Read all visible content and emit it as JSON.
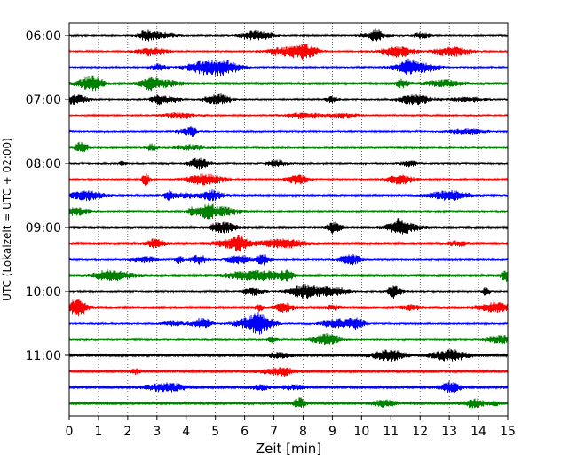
{
  "chart_data": {
    "type": "line",
    "title": "",
    "xlabel": "Zeit  [min]",
    "ylabel": "UTC (Lokalzeit = UTC + 02:00)",
    "xlim": [
      0,
      15
    ],
    "x_ticks": [
      "0",
      "1",
      "2",
      "3",
      "4",
      "5",
      "6",
      "7",
      "8",
      "9",
      "10",
      "11",
      "12",
      "13",
      "14",
      "15"
    ],
    "grid": "vertical-dotted",
    "trace_interval_min": 15,
    "trace_colors": [
      "#000000",
      "#ff0000",
      "#0000ff",
      "#008000"
    ],
    "y_ticks": [
      {
        "label": "06:00",
        "trace_index": 0
      },
      {
        "label": "07:00",
        "trace_index": 4
      },
      {
        "label": "08:00",
        "trace_index": 8
      },
      {
        "label": "09:00",
        "trace_index": 12
      },
      {
        "label": "10:00",
        "trace_index": 16
      },
      {
        "label": "11:00",
        "trace_index": 20
      }
    ],
    "series": [
      {
        "start": "06:00",
        "color": "#000000"
      },
      {
        "start": "06:15",
        "color": "#ff0000"
      },
      {
        "start": "06:30",
        "color": "#0000ff"
      },
      {
        "start": "06:45",
        "color": "#008000"
      },
      {
        "start": "07:00",
        "color": "#000000"
      },
      {
        "start": "07:15",
        "color": "#ff0000"
      },
      {
        "start": "07:30",
        "color": "#0000ff"
      },
      {
        "start": "07:45",
        "color": "#008000"
      },
      {
        "start": "08:00",
        "color": "#000000"
      },
      {
        "start": "08:15",
        "color": "#ff0000"
      },
      {
        "start": "08:30",
        "color": "#0000ff"
      },
      {
        "start": "08:45",
        "color": "#008000"
      },
      {
        "start": "09:00",
        "color": "#000000"
      },
      {
        "start": "09:15",
        "color": "#ff0000"
      },
      {
        "start": "09:30",
        "color": "#0000ff"
      },
      {
        "start": "09:45",
        "color": "#008000"
      },
      {
        "start": "10:00",
        "color": "#000000"
      },
      {
        "start": "10:15",
        "color": "#ff0000"
      },
      {
        "start": "10:30",
        "color": "#0000ff"
      },
      {
        "start": "10:45",
        "color": "#008000"
      },
      {
        "start": "11:00",
        "color": "#000000"
      },
      {
        "start": "11:15",
        "color": "#ff0000"
      },
      {
        "start": "11:30",
        "color": "#0000ff"
      },
      {
        "start": "11:45",
        "color": "#008000"
      }
    ]
  }
}
